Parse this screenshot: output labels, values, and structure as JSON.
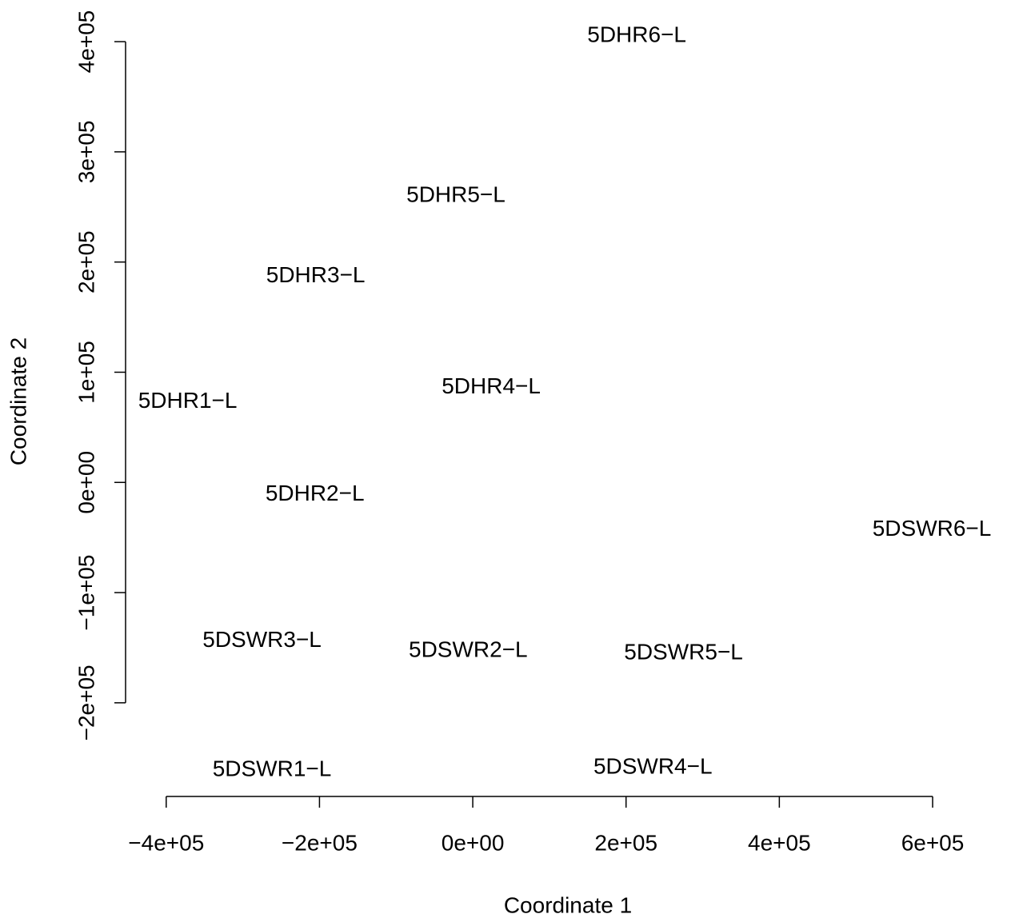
{
  "chart_data": {
    "type": "scatter",
    "xlabel": "Coordinate 1",
    "ylabel": "Coordinate 2",
    "xlim": [
      -453000,
      672000
    ],
    "ylim": [
      -285000,
      432000
    ],
    "xticks": [
      {
        "value": -400000,
        "label": "−4e+05"
      },
      {
        "value": -200000,
        "label": "−2e+05"
      },
      {
        "value": 0,
        "label": "0e+00"
      },
      {
        "value": 200000,
        "label": "2e+05"
      },
      {
        "value": 400000,
        "label": "4e+05"
      },
      {
        "value": 600000,
        "label": "6e+05"
      }
    ],
    "yticks": [
      {
        "value": -200000,
        "label": "−2e+05"
      },
      {
        "value": -100000,
        "label": "−1e+05"
      },
      {
        "value": 0,
        "label": "0e+00"
      },
      {
        "value": 100000,
        "label": "1e+05"
      },
      {
        "value": 200000,
        "label": "2e+05"
      },
      {
        "value": 300000,
        "label": "3e+05"
      },
      {
        "value": 400000,
        "label": "4e+05"
      }
    ],
    "color": "#000000",
    "labels": [
      "5DHR6−L",
      "5DHR5−L",
      "5DHR3−L",
      "5DHR4−L",
      "5DHR1−L",
      "5DHR2−L",
      "5DSWR6−L",
      "5DSWR3−L",
      "5DSWR2−L",
      "5DSWR5−L",
      "5DSWR1−L",
      "5DSWR4−L"
    ],
    "x": [
      214000,
      -22000,
      -205000,
      24000,
      -372000,
      -206000,
      599000,
      -275000,
      -6000,
      275000,
      -262000,
      235000
    ],
    "y": [
      405000,
      260000,
      187000,
      86000,
      73000,
      -11000,
      -43000,
      -144000,
      -153000,
      -155000,
      -261000,
      -259000
    ]
  }
}
